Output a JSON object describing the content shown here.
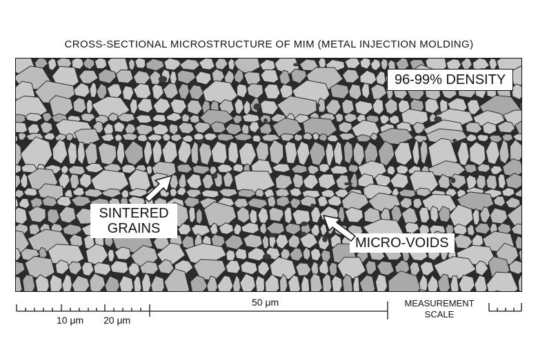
{
  "title": "CROSS-SECTIONAL MICROSTRUCTURE OF MIM (METAL INJECTION MOLDING)",
  "labels": {
    "density": "96-99% DENSITY",
    "sintered_line1": "SINTERED",
    "sintered_line2": "GRAINS",
    "voids": "MICRO-VOIDS"
  },
  "scale": {
    "mark_10": "10 μm",
    "mark_20": "20 μm",
    "mark_50": "50 μm",
    "caption_line1": "MEASUREMENT",
    "caption_line2": "SCALE"
  },
  "colors": {
    "grain_light": "#c9c9c9",
    "grain_dark": "#a9a9a9",
    "boundary": "#2a2a2a",
    "void": "#3a3a3a"
  }
}
